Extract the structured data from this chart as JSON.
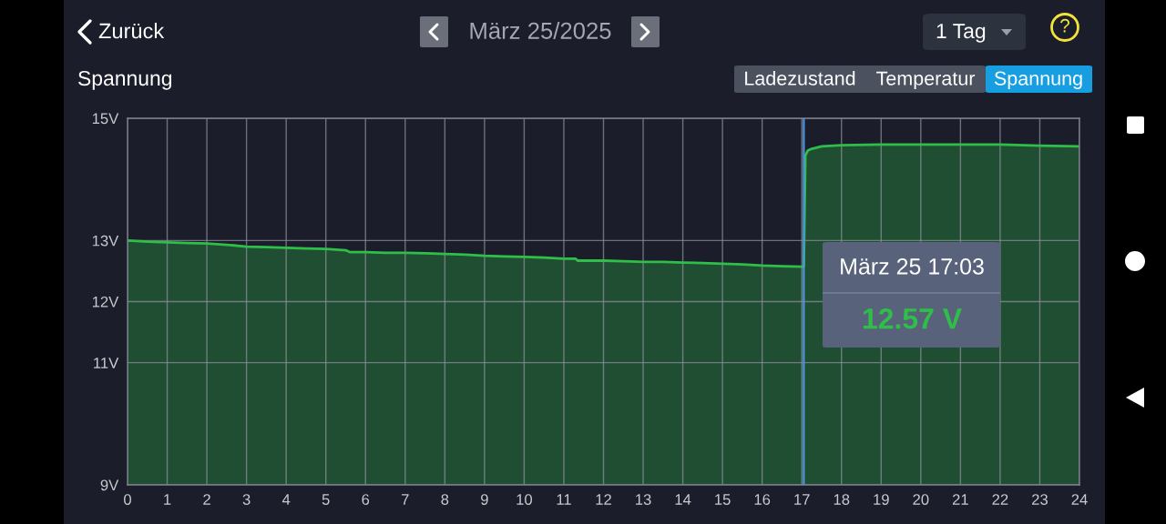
{
  "chart_data": {
    "type": "area",
    "title": "Spannung",
    "x": [
      0,
      0.5,
      1,
      1.5,
      2,
      2.5,
      3,
      3.5,
      4,
      4.5,
      5,
      5.5,
      5.6,
      6,
      6.5,
      7,
      7.5,
      8,
      8.5,
      9,
      9.5,
      10,
      10.5,
      11,
      11.3,
      11.35,
      12,
      12.5,
      13,
      13.5,
      14,
      14.5,
      15,
      15.5,
      16,
      16.5,
      17,
      17.05,
      17.09,
      17.15,
      17.25,
      17.5,
      18,
      19,
      20,
      21,
      22,
      23,
      24
    ],
    "values": [
      13.0,
      12.98,
      12.97,
      12.96,
      12.95,
      12.93,
      12.9,
      12.89,
      12.88,
      12.87,
      12.86,
      12.84,
      12.81,
      12.81,
      12.8,
      12.8,
      12.79,
      12.78,
      12.77,
      12.75,
      12.74,
      12.73,
      12.72,
      12.7,
      12.7,
      12.67,
      12.67,
      12.66,
      12.65,
      12.65,
      12.64,
      12.63,
      12.62,
      12.61,
      12.59,
      12.58,
      12.57,
      12.57,
      14.39,
      14.47,
      14.5,
      14.54,
      14.56,
      14.57,
      14.57,
      14.57,
      14.57,
      14.55,
      14.54
    ],
    "color": "#2fbf48",
    "xlim": [
      0,
      24
    ],
    "xticks": [
      0,
      1,
      2,
      3,
      4,
      5,
      6,
      7,
      8,
      9,
      10,
      11,
      12,
      13,
      14,
      15,
      16,
      17,
      18,
      19,
      20,
      21,
      22,
      23,
      24
    ],
    "ylim": [
      9,
      15
    ],
    "yticks": [
      {
        "value": 9,
        "label": "9V"
      },
      {
        "value": 11,
        "label": "11V"
      },
      {
        "value": 12,
        "label": "12V"
      },
      {
        "value": 13,
        "label": "13V"
      },
      {
        "value": 15,
        "label": "15V"
      }
    ],
    "grid": true,
    "line_style": "solid",
    "ref_lines": [
      {
        "axis": "x",
        "value": 17.05,
        "color": "#4a95e0"
      }
    ],
    "annotations": [
      "Zurück",
      "März 25/2025",
      "1 Tag",
      "?",
      "Ladezustand",
      "Temperatur",
      "Spannung",
      "März 25 17:03",
      "12.57 V"
    ]
  }
}
